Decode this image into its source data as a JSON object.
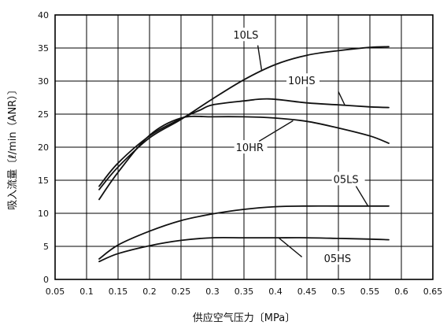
{
  "chart_data": {
    "type": "line",
    "title": "",
    "xlabel": "供应空气压力〔MPa〕",
    "ylabel": "吸入流量〔ℓ/min（ANR）〕",
    "xlim": [
      0.05,
      0.65
    ],
    "ylim": [
      0,
      40
    ],
    "xticks": [
      "0.05",
      "0.1",
      "0.15",
      "0.2",
      "0.25",
      "0.3",
      "0.35",
      "0.4",
      "0.45",
      "0.5",
      "0.55",
      "0.6",
      "0.65"
    ],
    "yticks": [
      "0",
      "5",
      "10",
      "15",
      "20",
      "25",
      "30",
      "35",
      "40"
    ],
    "grid": true,
    "legend": "none",
    "series": [
      {
        "name": "10LS",
        "points": [
          [
            0.12,
            13.6
          ],
          [
            0.15,
            17.0
          ],
          [
            0.2,
            21.4
          ],
          [
            0.25,
            24.2
          ],
          [
            0.3,
            27.3
          ],
          [
            0.35,
            30.2
          ],
          [
            0.4,
            32.5
          ],
          [
            0.45,
            33.9
          ],
          [
            0.5,
            34.6
          ],
          [
            0.55,
            35.1
          ],
          [
            0.58,
            35.2
          ]
        ]
      },
      {
        "name": "10HS",
        "points": [
          [
            0.12,
            14.1
          ],
          [
            0.15,
            17.6
          ],
          [
            0.2,
            21.7
          ],
          [
            0.25,
            24.3
          ],
          [
            0.28,
            25.6
          ],
          [
            0.3,
            26.4
          ],
          [
            0.35,
            27.0
          ],
          [
            0.39,
            27.3
          ],
          [
            0.45,
            26.7
          ],
          [
            0.5,
            26.4
          ],
          [
            0.55,
            26.1
          ],
          [
            0.58,
            26.0
          ]
        ]
      },
      {
        "name": "10HR",
        "points": [
          [
            0.12,
            12.1
          ],
          [
            0.15,
            16.2
          ],
          [
            0.2,
            21.8
          ],
          [
            0.25,
            24.4
          ],
          [
            0.3,
            24.6
          ],
          [
            0.35,
            24.6
          ],
          [
            0.4,
            24.4
          ],
          [
            0.45,
            23.9
          ],
          [
            0.5,
            22.9
          ],
          [
            0.55,
            21.7
          ],
          [
            0.58,
            20.6
          ]
        ]
      },
      {
        "name": "05LS",
        "points": [
          [
            0.12,
            3.1
          ],
          [
            0.15,
            5.2
          ],
          [
            0.2,
            7.3
          ],
          [
            0.25,
            8.9
          ],
          [
            0.3,
            9.9
          ],
          [
            0.35,
            10.6
          ],
          [
            0.4,
            11.0
          ],
          [
            0.45,
            11.1
          ],
          [
            0.5,
            11.1
          ],
          [
            0.55,
            11.1
          ],
          [
            0.58,
            11.1
          ]
        ]
      },
      {
        "name": "05HS",
        "points": [
          [
            0.12,
            2.7
          ],
          [
            0.15,
            3.9
          ],
          [
            0.2,
            5.1
          ],
          [
            0.25,
            5.9
          ],
          [
            0.3,
            6.3
          ],
          [
            0.35,
            6.3
          ],
          [
            0.4,
            6.3
          ],
          [
            0.45,
            6.3
          ],
          [
            0.5,
            6.2
          ],
          [
            0.55,
            6.1
          ],
          [
            0.58,
            6.0
          ]
        ]
      }
    ]
  }
}
